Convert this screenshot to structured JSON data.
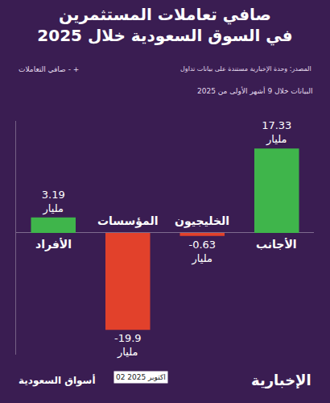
{
  "chart_data": {
    "type": "bar",
    "title": "صافي تعاملات المستثمرين في السوق السعودية خلال 2025",
    "subtitle": "البيانات خلال 9 أشهر الأولى من 2025",
    "categories": [
      "الأفراد",
      "المؤسسات",
      "الخليجيون",
      "الأجانب"
    ],
    "values": [
      3.19,
      -19.9,
      -0.63,
      17.33
    ],
    "value_labels": [
      "3.19 مليار",
      "-19.9 مليار",
      "-0.63 مليار",
      "17.33 مليار"
    ],
    "colors": [
      "#3fb54b",
      "#e2412b",
      "#e2412b",
      "#3fb54b"
    ],
    "ylim": [
      -25,
      23
    ],
    "yticks": [
      0
    ],
    "grid": true,
    "data_labels": true,
    "tick_labels": false,
    "annotations": [
      "المصدر: وحدة الإخبارية مستندة على بيانات تداول",
      "صافي التعاملات - +",
      "الإخبارية",
      "02 اكتوبر 2025",
      "أسواق السعودية"
    ]
  }
}
